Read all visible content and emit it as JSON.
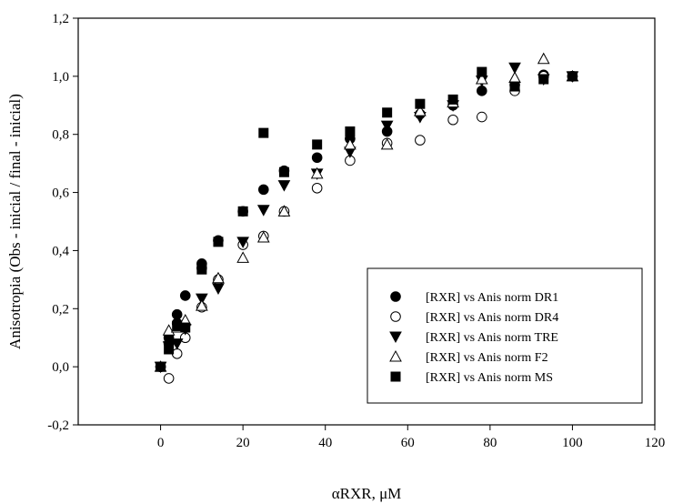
{
  "chart_data": {
    "type": "scatter",
    "title": "",
    "xlabel": "αRXR, μM",
    "ylabel": "Anisotropia (Obs - inicial / final - inicial)",
    "xlim": [
      -20,
      120
    ],
    "ylim": [
      -0.2,
      1.2
    ],
    "x_ticks": [
      0,
      20,
      40,
      60,
      80,
      100,
      120
    ],
    "y_ticks": [
      -0.2,
      0.0,
      0.2,
      0.4,
      0.6,
      0.8,
      1.0,
      1.2
    ],
    "x_tick_labels": [
      "0",
      "20",
      "40",
      "60",
      "80",
      "100",
      "120"
    ],
    "y_tick_labels": [
      "-0,2",
      "0,0",
      "0,2",
      "0,4",
      "0,6",
      "0,8",
      "1,0",
      "1,2"
    ],
    "grid": false,
    "legend_position": "bottom-right",
    "series": [
      {
        "name": "[RXR] vs Anis norm DR1",
        "marker": "circle-filled",
        "points": [
          [
            0,
            0.0
          ],
          [
            2,
            0.1
          ],
          [
            2,
            0.08
          ],
          [
            4,
            0.18
          ],
          [
            4,
            0.15
          ],
          [
            6,
            0.245
          ],
          [
            10,
            0.355
          ],
          [
            10,
            0.34
          ],
          [
            14,
            0.435
          ],
          [
            20,
            0.535
          ],
          [
            25,
            0.61
          ],
          [
            30,
            0.675
          ],
          [
            38,
            0.72
          ],
          [
            46,
            0.785
          ],
          [
            55,
            0.81
          ],
          [
            63,
            0.87
          ],
          [
            71,
            0.9
          ],
          [
            78,
            0.95
          ],
          [
            86,
            0.97
          ],
          [
            93,
            1.005
          ],
          [
            100,
            1.0
          ]
        ]
      },
      {
        "name": "[RXR] vs Anis norm DR4",
        "marker": "circle-open",
        "points": [
          [
            0,
            0.0
          ],
          [
            2,
            -0.04
          ],
          [
            4,
            0.045
          ],
          [
            6,
            0.1
          ],
          [
            10,
            0.205
          ],
          [
            14,
            0.3
          ],
          [
            20,
            0.42
          ],
          [
            25,
            0.45
          ],
          [
            30,
            0.535
          ],
          [
            38,
            0.615
          ],
          [
            46,
            0.71
          ],
          [
            55,
            0.77
          ],
          [
            63,
            0.78
          ],
          [
            71,
            0.85
          ],
          [
            78,
            0.86
          ],
          [
            86,
            0.95
          ],
          [
            93,
            1.0
          ],
          [
            100,
            1.0
          ]
        ]
      },
      {
        "name": "[RXR] vs Anis norm TRE",
        "marker": "triangle-down-filled",
        "points": [
          [
            0,
            0.0
          ],
          [
            2,
            0.07
          ],
          [
            4,
            0.08
          ],
          [
            6,
            0.13
          ],
          [
            10,
            0.235
          ],
          [
            14,
            0.27
          ],
          [
            20,
            0.43
          ],
          [
            25,
            0.54
          ],
          [
            30,
            0.625
          ],
          [
            38,
            0.665
          ],
          [
            46,
            0.74
          ],
          [
            55,
            0.83
          ],
          [
            63,
            0.86
          ],
          [
            71,
            0.9
          ],
          [
            78,
            0.985
          ],
          [
            86,
            1.03
          ],
          [
            93,
            0.99
          ],
          [
            100,
            1.0
          ]
        ]
      },
      {
        "name": "[RXR] vs Anis norm F2",
        "marker": "triangle-up-open",
        "points": [
          [
            0,
            0.0
          ],
          [
            2,
            0.125
          ],
          [
            4,
            0.135
          ],
          [
            6,
            0.16
          ],
          [
            10,
            0.21
          ],
          [
            14,
            0.305
          ],
          [
            20,
            0.375
          ],
          [
            25,
            0.445
          ],
          [
            30,
            0.535
          ],
          [
            38,
            0.665
          ],
          [
            46,
            0.765
          ],
          [
            55,
            0.765
          ],
          [
            63,
            0.88
          ],
          [
            71,
            0.91
          ],
          [
            78,
            0.99
          ],
          [
            86,
            0.995
          ],
          [
            93,
            1.06
          ],
          [
            100,
            1.0
          ]
        ]
      },
      {
        "name": "[RXR] vs Anis norm MS",
        "marker": "square-filled",
        "points": [
          [
            0,
            0.0
          ],
          [
            2,
            0.06
          ],
          [
            4,
            0.14
          ],
          [
            6,
            0.135
          ],
          [
            10,
            0.335
          ],
          [
            14,
            0.43
          ],
          [
            20,
            0.535
          ],
          [
            25,
            0.805
          ],
          [
            30,
            0.67
          ],
          [
            38,
            0.765
          ],
          [
            46,
            0.81
          ],
          [
            55,
            0.875
          ],
          [
            63,
            0.905
          ],
          [
            71,
            0.92
          ],
          [
            78,
            1.015
          ],
          [
            86,
            0.965
          ],
          [
            93,
            0.99
          ],
          [
            100,
            1.0
          ]
        ]
      }
    ]
  }
}
